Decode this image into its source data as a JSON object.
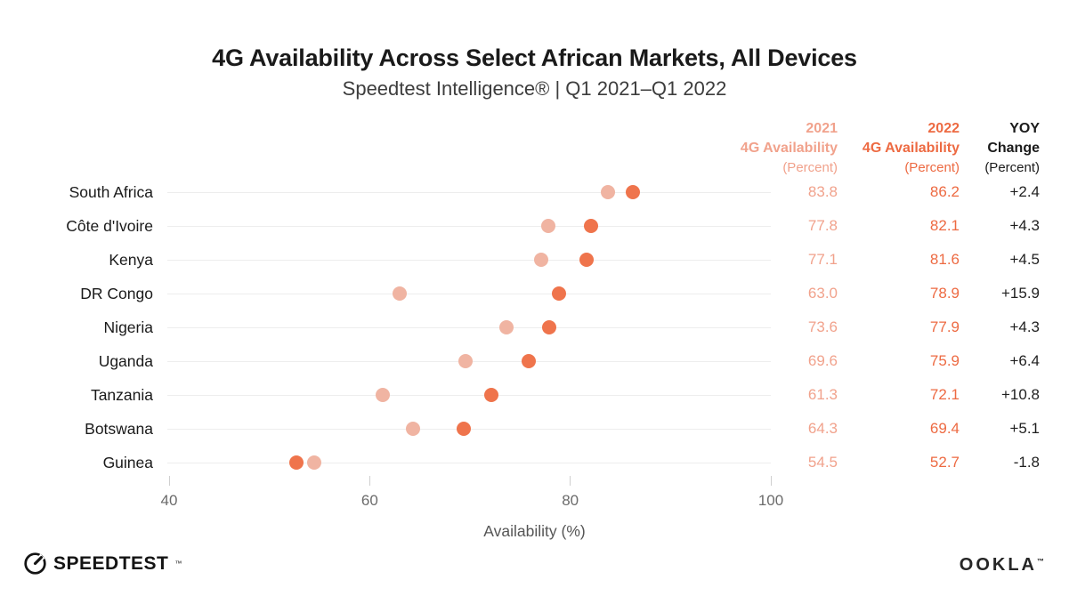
{
  "title": "4G Availability Across Select African Markets, All Devices",
  "subtitle": "Speedtest Intelligence® | Q1 2021–Q1 2022",
  "table_headers": {
    "col2021": {
      "line1": "2021",
      "line2": "4G Availability",
      "line3": "(Percent)"
    },
    "col2022": {
      "line1": "2022",
      "line2": "4G Availability",
      "line3": "(Percent)"
    },
    "colyoy": {
      "line1": "YOY",
      "line2": "Change",
      "line3": "(Percent)"
    }
  },
  "colors": {
    "light_dot": "#f0b4a2",
    "light_text": "#f1a28c",
    "dark_dot": "#ef744c",
    "dark_text": "#ed6a42",
    "yoy_text": "#1f1f1f",
    "gridline": "#ededed"
  },
  "chart_data": {
    "type": "scatter",
    "variant": "dot-plot",
    "title": "4G Availability Across Select African Markets, All Devices",
    "subtitle": "Speedtest Intelligence® | Q1 2021–Q1 2022",
    "categories": [
      "South Africa",
      "Côte d'Ivoire",
      "Kenya",
      "DR Congo",
      "Nigeria",
      "Uganda",
      "Tanzania",
      "Botswana",
      "Guinea"
    ],
    "series": [
      {
        "name": "2021 4G Availability (Percent)",
        "values": [
          83.8,
          77.8,
          77.1,
          63.0,
          73.6,
          69.6,
          61.3,
          64.3,
          54.5
        ]
      },
      {
        "name": "2022 4G Availability (Percent)",
        "values": [
          86.2,
          82.1,
          81.6,
          78.9,
          77.9,
          75.9,
          72.1,
          69.4,
          52.7
        ]
      }
    ],
    "yoy_change": [
      "+2.4",
      "+4.3",
      "+4.5",
      "+15.9",
      "+4.3",
      "+6.4",
      "+10.8",
      "+5.1",
      "-1.8"
    ],
    "xlabel": "Availability (%)",
    "xticks": [
      40,
      60,
      80,
      100
    ],
    "xlim": [
      40,
      100
    ],
    "grid": "horizontal-row-lines",
    "legend": "table-headers"
  },
  "footer": {
    "speedtest_label": "SPEEDTEST",
    "speedtest_tm": "™",
    "ookla_label": "OOKLA",
    "ookla_tm": "™"
  }
}
